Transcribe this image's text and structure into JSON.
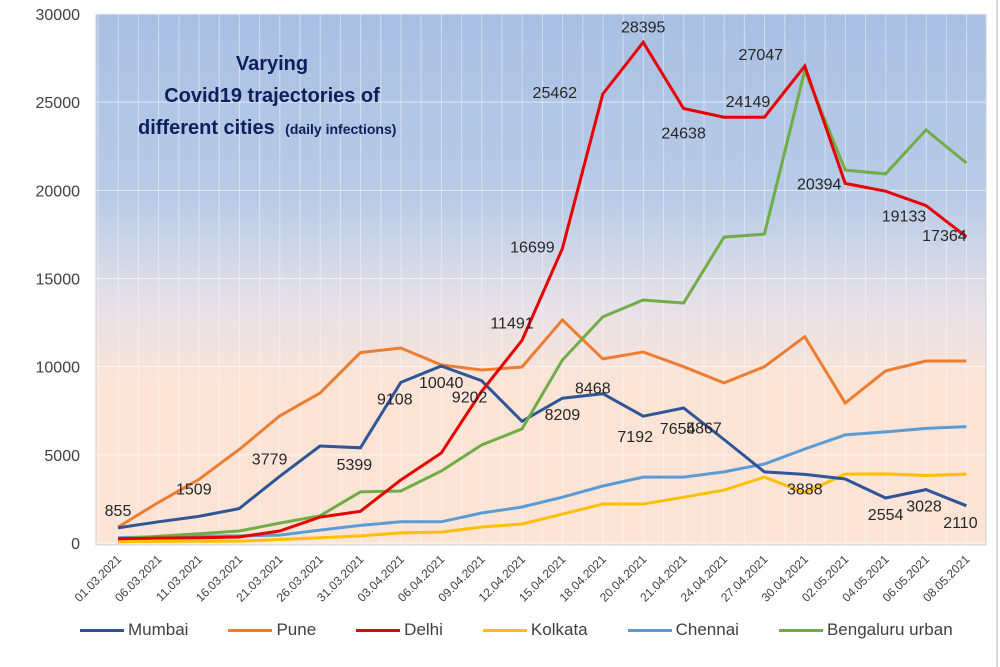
{
  "chart_data": {
    "type": "line",
    "title": [
      "Varying",
      "Covid19  trajectories of",
      "different cities"
    ],
    "title_suffix": "(daily infections)",
    "xlabel": "",
    "ylabel": "",
    "ylim": [
      0,
      30000
    ],
    "yticks": [
      "0",
      "5000",
      "10000",
      "15000",
      "20000",
      "25000",
      "30000"
    ],
    "ytick_values": [
      0,
      5000,
      10000,
      15000,
      20000,
      25000,
      30000
    ],
    "grid": true,
    "legend_position": "bottom",
    "categories": [
      "01.03.2021",
      "06.03.2021",
      "11.03.2021",
      "16.03.2021",
      "21.03.2021",
      "26.03.2021",
      "31.03.2021",
      "03.04.2021",
      "06.04.2021",
      "09.04.2021",
      "12.04.2021",
      "15.04.2021",
      "18.04.2021",
      "20.04.2021",
      "21.04.2021",
      "24.04.2021",
      "27.04.2021",
      "30.04.2021",
      "02.05.2021",
      "04.05.2021",
      "06.05.2021",
      "08.05.2021"
    ],
    "series": [
      {
        "name": "Mumbai",
        "color": "#2f5597",
        "values": [
          855,
          1200,
          1509,
          1950,
          3779,
          5500,
          5399,
          9108,
          10040,
          9202,
          6900,
          8209,
          8468,
          7192,
          7654,
          5867,
          4030,
          3888,
          3630,
          2554,
          3028,
          2110
        ],
        "labels": {
          "0": "855",
          "2": "1509",
          "4": "3779",
          "6": "5399",
          "7": "9108",
          "8": "10040",
          "9": "9202",
          "11": "8209",
          "12": "8468",
          "13": "7192",
          "14": "7654",
          "15": "5867",
          "17": "3888",
          "19": "2554",
          "20": "3028",
          "21": "2110"
        }
      },
      {
        "name": "Pune",
        "color": "#ed7d31",
        "values": [
          900,
          2300,
          3600,
          5300,
          7200,
          8500,
          10800,
          11060,
          10100,
          9810,
          9980,
          12650,
          10440,
          10830,
          10000,
          9080,
          10000,
          11700,
          7940,
          9760,
          10320,
          10320
        ],
        "labels": {}
      },
      {
        "name": "Delhi",
        "color": "#e60000",
        "values": [
          240,
          280,
          300,
          340,
          680,
          1470,
          1800,
          3570,
          5100,
          8600,
          11491,
          16699,
          25462,
          28395,
          24638,
          24149,
          24149,
          27047,
          20394,
          19950,
          19133,
          17364
        ],
        "labels": {
          "10": "11491",
          "11": "16699",
          "12": "25462",
          "13": "28395",
          "14": "24638",
          "15": "24149",
          "17": "27047",
          "18": "20394",
          "20": "19133",
          "21": "17364"
        }
      },
      {
        "name": "Kolkata",
        "color": "#ffc000",
        "values": [
          80,
          90,
          100,
          100,
          200,
          300,
          400,
          570,
          620,
          910,
          1080,
          1640,
          2210,
          2210,
          2600,
          3000,
          3740,
          2850,
          3910,
          3920,
          3830,
          3910
        ],
        "labels": {}
      },
      {
        "name": "Chennai",
        "color": "#5b9bd5",
        "values": [
          300,
          350,
          380,
          400,
          450,
          730,
          1000,
          1200,
          1200,
          1700,
          2040,
          2600,
          3230,
          3740,
          3740,
          4030,
          4480,
          5330,
          6130,
          6300,
          6500,
          6600
        ],
        "labels": {}
      },
      {
        "name": "Bengaluru urban",
        "color": "#70ad47",
        "values": [
          230,
          380,
          530,
          680,
          1130,
          1540,
          2900,
          2950,
          4080,
          5560,
          6470,
          10380,
          12820,
          13780,
          13610,
          17350,
          17520,
          26800,
          21150,
          20930,
          23430,
          21550
        ],
        "labels": {}
      }
    ]
  }
}
